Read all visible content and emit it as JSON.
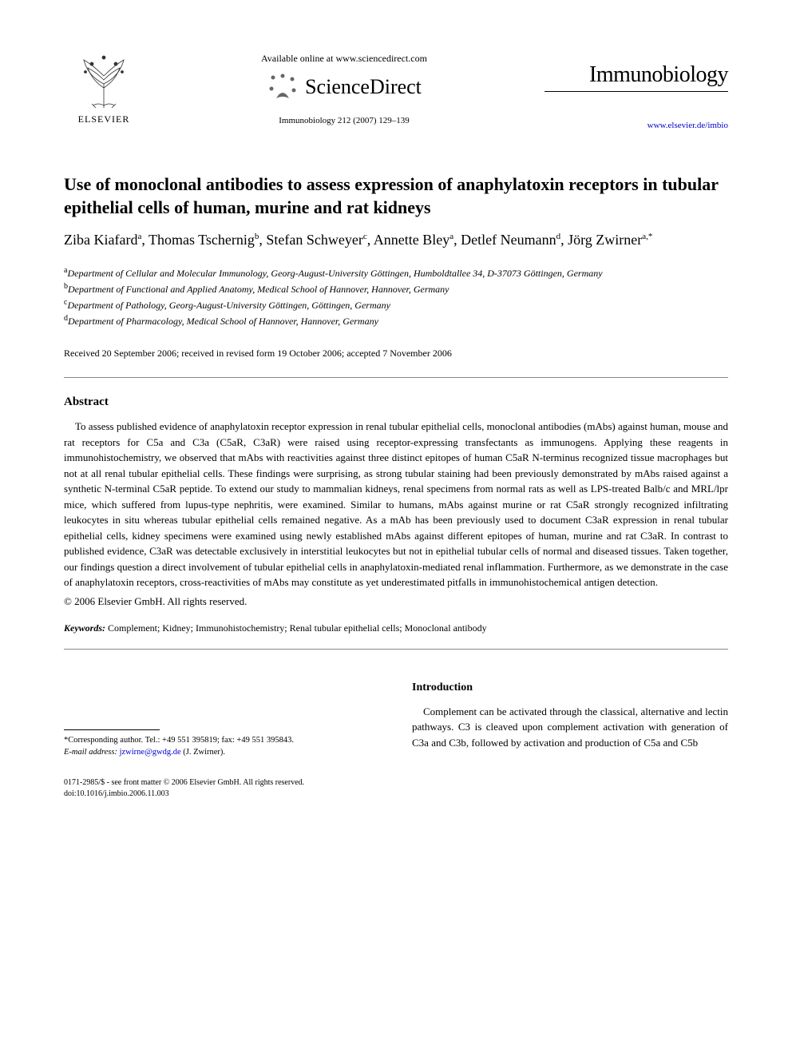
{
  "header": {
    "publisher_label": "ELSEVIER",
    "available_text": "Available online at www.sciencedirect.com",
    "sciencedirect_label": "ScienceDirect",
    "citation": "Immunobiology 212 (2007) 129–139",
    "journal_title": "Immunobiology",
    "journal_url": "www.elsevier.de/imbio"
  },
  "article": {
    "title": "Use of monoclonal antibodies to assess expression of anaphylatoxin receptors in tubular epithelial cells of human, murine and rat kidneys",
    "authors_html": "Ziba Kiafard<sup>a</sup>, Thomas Tschernig<sup>b</sup>, Stefan Schweyer<sup>c</sup>, Annette Bley<sup>a</sup>, Detlef Neumann<sup>d</sup>, Jörg Zwirner<sup>a,*</sup>",
    "affiliations": [
      {
        "sup": "a",
        "text": "Department of Cellular and Molecular Immunology, Georg-August-University Göttingen, Humboldtallee 34, D-37073 Göttingen, Germany"
      },
      {
        "sup": "b",
        "text": "Department of Functional and Applied Anatomy, Medical School of Hannover, Hannover, Germany"
      },
      {
        "sup": "c",
        "text": "Department of Pathology, Georg-August-University Göttingen, Göttingen, Germany"
      },
      {
        "sup": "d",
        "text": "Department of Pharmacology, Medical School of Hannover, Hannover, Germany"
      }
    ],
    "dates": "Received 20 September 2006; received in revised form 19 October 2006; accepted 7 November 2006"
  },
  "abstract": {
    "heading": "Abstract",
    "body": "To assess published evidence of anaphylatoxin receptor expression in renal tubular epithelial cells, monoclonal antibodies (mAbs) against human, mouse and rat receptors for C5a and C3a (C5aR, C3aR) were raised using receptor-expressing transfectants as immunogens. Applying these reagents in immunohistochemistry, we observed that mAbs with reactivities against three distinct epitopes of human C5aR N-terminus recognized tissue macrophages but not at all renal tubular epithelial cells. These findings were surprising, as strong tubular staining had been previously demonstrated by mAbs raised against a synthetic N-terminal C5aR peptide. To extend our study to mammalian kidneys, renal specimens from normal rats as well as LPS-treated Balb/c and MRL/lpr mice, which suffered from lupus-type nephritis, were examined. Similar to humans, mAbs against murine or rat C5aR strongly recognized infiltrating leukocytes in situ whereas tubular epithelial cells remained negative. As a mAb has been previously used to document C3aR expression in renal tubular epithelial cells, kidney specimens were examined using newly established mAbs against different epitopes of human, murine and rat C3aR. In contrast to published evidence, C3aR was detectable exclusively in interstitial leukocytes but not in epithelial tubular cells of normal and diseased tissues. Taken together, our findings question a direct involvement of tubular epithelial cells in anaphylatoxin-mediated renal inflammation. Furthermore, as we demonstrate in the case of anaphylatoxin receptors, cross-reactivities of mAbs may constitute as yet underestimated pitfalls in immunohistochemical antigen detection.",
    "copyright": "© 2006 Elsevier GmbH. All rights reserved."
  },
  "keywords": {
    "label": "Keywords:",
    "text": "Complement; Kidney; Immunohistochemistry; Renal tubular epithelial cells; Monoclonal antibody"
  },
  "corresponding": {
    "line1": "*Corresponding author. Tel.: +49 551 395819; fax: +49 551 395843.",
    "email_label": "E-mail address:",
    "email": "jzwirne@gwdg.de",
    "email_suffix": "(J. Zwirner)."
  },
  "introduction": {
    "heading": "Introduction",
    "body": "Complement can be activated through the classical, alternative and lectin pathways. C3 is cleaved upon complement activation with generation of C3a and C3b, followed by activation and production of C5a and C5b"
  },
  "footer": {
    "line1": "0171-2985/$ - see front matter © 2006 Elsevier GmbH. All rights reserved.",
    "line2": "doi:10.1016/j.imbio.2006.11.003"
  }
}
